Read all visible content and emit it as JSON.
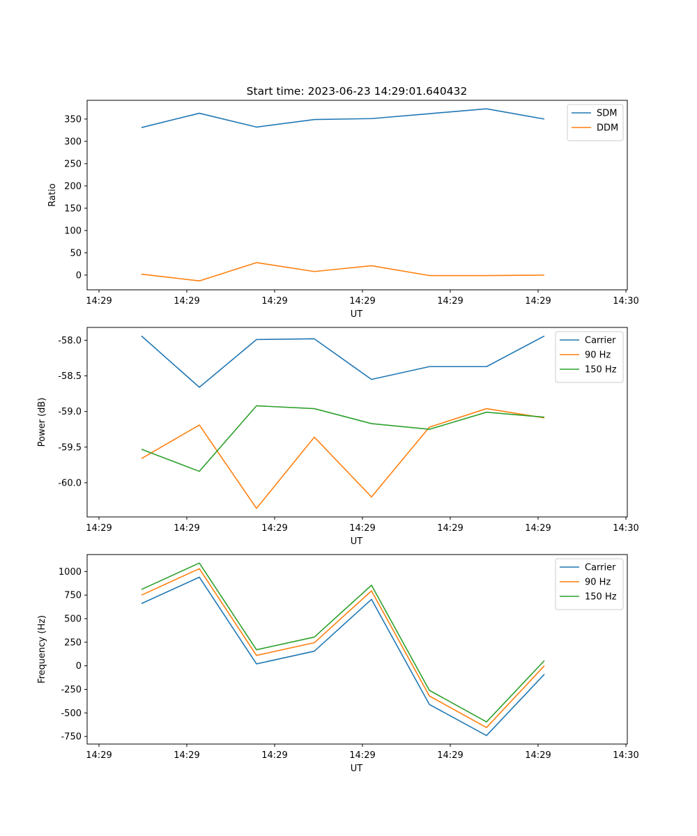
{
  "title": "Start time: 2023-06-23 14:29:01.640432",
  "colors": {
    "blue": "#1f77b4",
    "orange": "#ff7f0e",
    "green": "#2ca02c"
  },
  "chart_data": [
    {
      "type": "line",
      "title": "Start time: 2023-06-23 14:29:01.640432",
      "xlabel": "UT",
      "ylabel": "Ratio",
      "xticks": [
        "14:29",
        "14:29",
        "14:29",
        "14:29",
        "14:29",
        "14:29",
        "14:30"
      ],
      "ylim": [
        -33,
        392
      ],
      "yticks": [
        0,
        50,
        100,
        150,
        200,
        250,
        300,
        350
      ],
      "legend": "top-right",
      "series": [
        {
          "name": "SDM",
          "color": "#1f77b4",
          "values": [
            331,
            363,
            332,
            349,
            351,
            362,
            373,
            350
          ]
        },
        {
          "name": "DDM",
          "color": "#ff7f0e",
          "values": [
            2,
            -13,
            28,
            8,
            21,
            -1,
            -1,
            0
          ]
        }
      ]
    },
    {
      "type": "line",
      "xlabel": "UT",
      "ylabel": "Power (dB)",
      "xticks": [
        "14:29",
        "14:29",
        "14:29",
        "14:29",
        "14:29",
        "14:29",
        "14:30"
      ],
      "ylim": [
        -60.48,
        -57.82
      ],
      "yticks": [
        -58.0,
        -58.5,
        -59.0,
        -59.5,
        -60.0
      ],
      "legend": "top-right",
      "series": [
        {
          "name": "Carrier",
          "color": "#1f77b4",
          "values": [
            -57.94,
            -58.66,
            -57.99,
            -57.98,
            -58.55,
            -58.37,
            -58.37,
            -57.94
          ]
        },
        {
          "name": "90 Hz",
          "color": "#ff7f0e",
          "values": [
            -59.66,
            -59.19,
            -60.36,
            -59.36,
            -60.2,
            -59.22,
            -58.96,
            -59.09
          ]
        },
        {
          "name": "150 Hz",
          "color": "#2ca02c",
          "values": [
            -59.53,
            -59.84,
            -58.92,
            -58.96,
            -59.17,
            -59.25,
            -59.01,
            -59.08
          ]
        }
      ]
    },
    {
      "type": "line",
      "xlabel": "UT",
      "ylabel": "Frequency (Hz)",
      "xticks": [
        "14:29",
        "14:29",
        "14:29",
        "14:29",
        "14:29",
        "14:29",
        "14:30"
      ],
      "ylim": [
        -830,
        1180
      ],
      "yticks": [
        1000,
        750,
        500,
        250,
        0,
        -250,
        -500,
        -750
      ],
      "legend": "top-right",
      "series": [
        {
          "name": "Carrier",
          "color": "#1f77b4",
          "values": [
            660,
            940,
            20,
            155,
            705,
            -410,
            -740,
            -90
          ]
        },
        {
          "name": "90 Hz",
          "color": "#ff7f0e",
          "values": [
            750,
            1030,
            110,
            245,
            795,
            -320,
            -655,
            0
          ]
        },
        {
          "name": "150 Hz",
          "color": "#2ca02c",
          "values": [
            810,
            1090,
            170,
            305,
            855,
            -260,
            -595,
            55
          ]
        }
      ]
    }
  ]
}
